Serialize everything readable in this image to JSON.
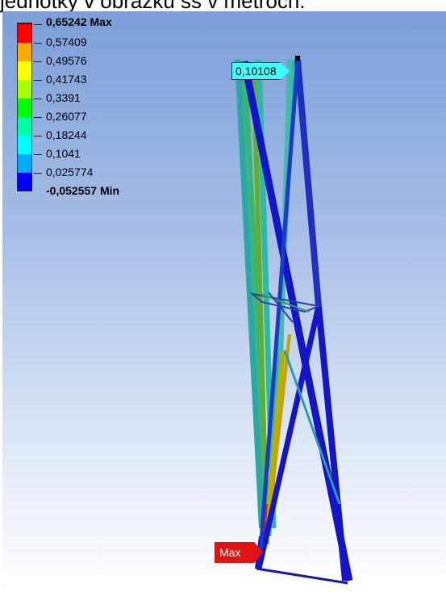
{
  "caption": "jednotky v obrázku ss v metroch.",
  "legend": {
    "entries": [
      {
        "value": "0,65242 Max",
        "color": "#ff0000",
        "bold": true
      },
      {
        "value": "0,57409",
        "color": "#ffaa00",
        "bold": false
      },
      {
        "value": "0,49576",
        "color": "#ffff00",
        "bold": false
      },
      {
        "value": "0,41743",
        "color": "#aaff00",
        "bold": false
      },
      {
        "value": "0,3391",
        "color": "#00ff00",
        "bold": false
      },
      {
        "value": "0,26077",
        "color": "#00ffaa",
        "bold": false
      },
      {
        "value": "0,18244",
        "color": "#00ffff",
        "bold": false
      },
      {
        "value": "0,1041",
        "color": "#00aaff",
        "bold": false
      },
      {
        "value": "0,025774",
        "color": "#0000ff",
        "bold": false
      },
      {
        "value": "-0,052557 Min",
        "color": "#0000ff",
        "bold": true
      }
    ]
  },
  "probe": {
    "value": "0,10108"
  },
  "max_marker": {
    "label": "Max"
  }
}
